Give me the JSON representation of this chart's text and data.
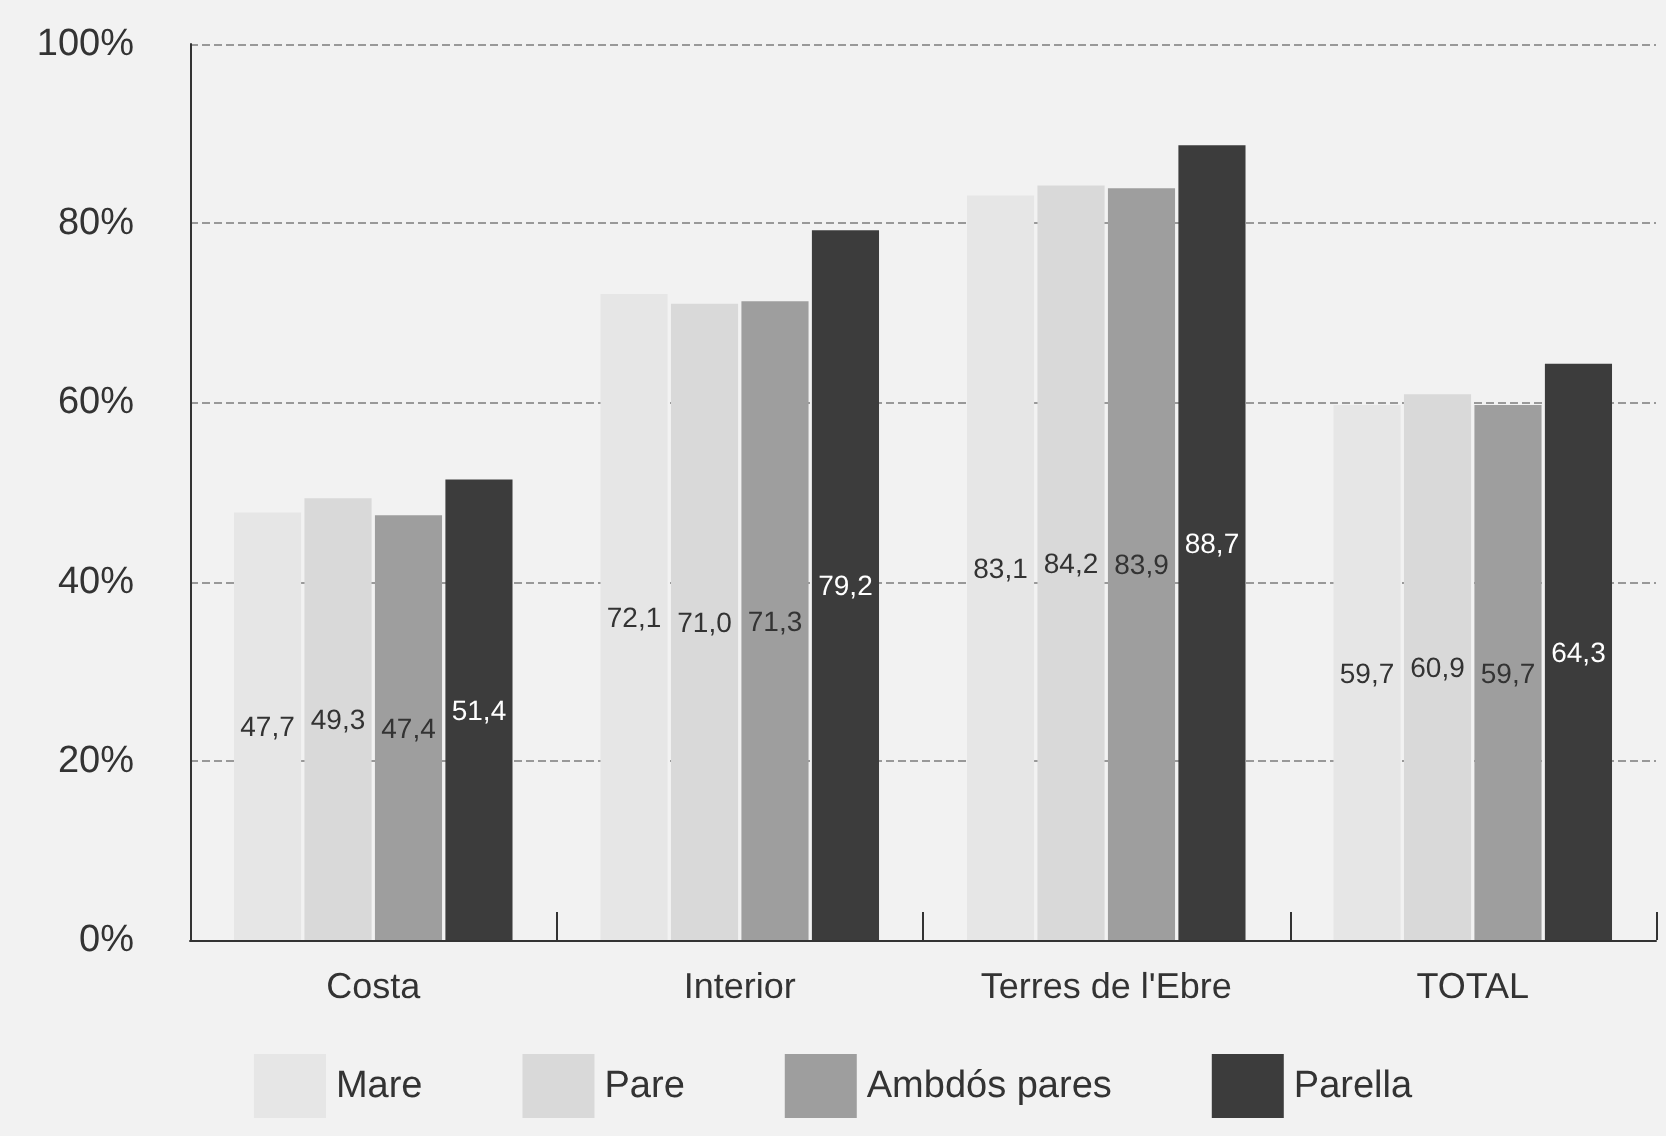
{
  "chart_data": {
    "type": "bar",
    "categories": [
      "Costa",
      "Interior",
      "Terres de l'Ebre",
      "TOTAL"
    ],
    "series": [
      {
        "name": "Mare",
        "color": "#e6e6e6",
        "values": [
          47.7,
          72.1,
          83.1,
          59.7
        ],
        "value_labels": [
          "47,7",
          "72,1",
          "83,1",
          "59,7"
        ]
      },
      {
        "name": "Pare",
        "color": "#d9d9d9",
        "values": [
          49.3,
          71.0,
          84.2,
          60.9
        ],
        "value_labels": [
          "49,3",
          "71,0",
          "84,2",
          "60,9"
        ]
      },
      {
        "name": "Ambdós pares",
        "color": "#9e9e9e",
        "values": [
          47.4,
          71.3,
          83.9,
          59.7
        ],
        "value_labels": [
          "47,4",
          "71,3",
          "83,9",
          "59,7"
        ]
      },
      {
        "name": "Parella",
        "color": "#3c3c3c",
        "values": [
          51.4,
          79.2,
          88.7,
          64.3
        ],
        "value_labels": [
          "51,4",
          "79,2",
          "88,7",
          "64,3"
        ]
      }
    ],
    "ylim": [
      0,
      100
    ],
    "yticks": [
      {
        "value": 0,
        "label": "0%"
      },
      {
        "value": 20,
        "label": "20%"
      },
      {
        "value": 40,
        "label": "40%"
      },
      {
        "value": 60,
        "label": "60%"
      },
      {
        "value": 80,
        "label": "80%"
      },
      {
        "value": 100,
        "label": "100%"
      }
    ],
    "grid": "y",
    "legend": "bottom"
  }
}
